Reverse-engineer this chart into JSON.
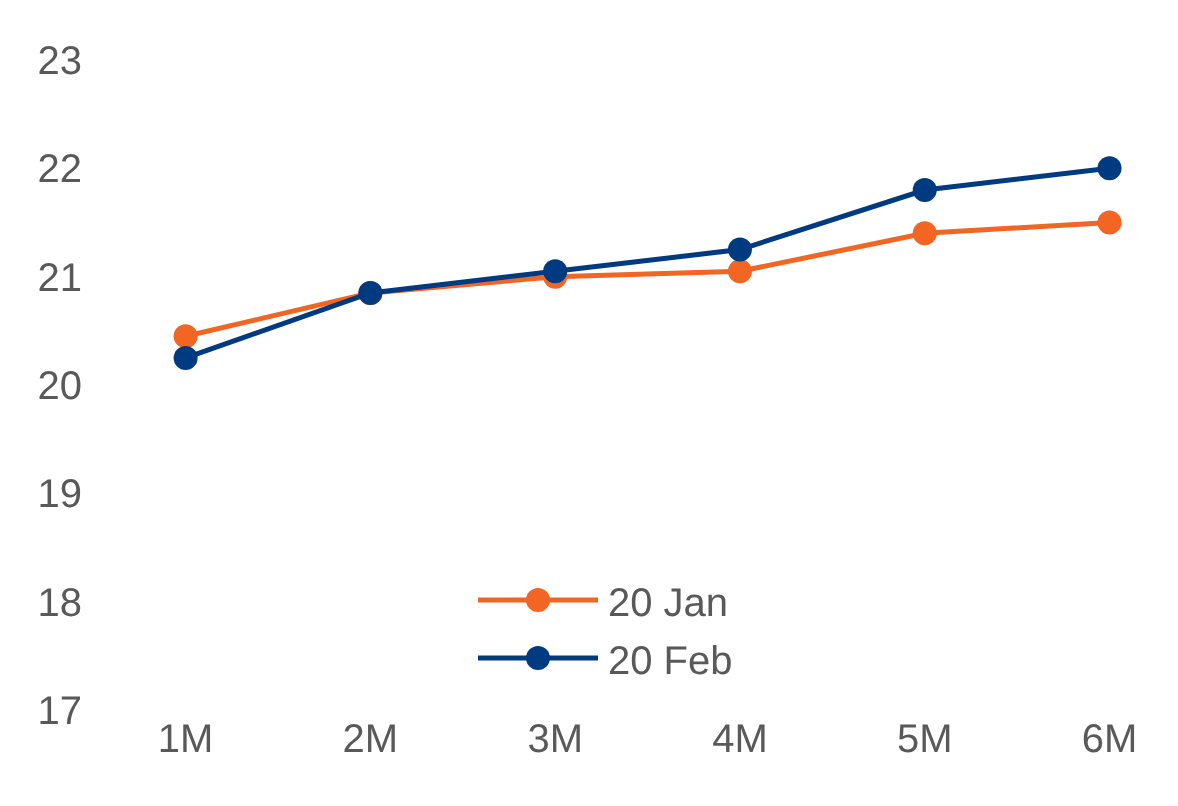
{
  "chart_data": {
    "type": "line",
    "categories": [
      "1M",
      "2M",
      "3M",
      "4M",
      "5M",
      "6M"
    ],
    "series": [
      {
        "name": "20 Jan",
        "color": "#f26522",
        "values": [
          20.45,
          20.85,
          21.0,
          21.05,
          21.4,
          21.5
        ]
      },
      {
        "name": "20 Feb",
        "color": "#003a80",
        "values": [
          20.25,
          20.85,
          21.05,
          21.25,
          21.8,
          22.0
        ]
      }
    ],
    "ylim": [
      17,
      23
    ],
    "yticks": [
      17,
      18,
      19,
      20,
      21,
      22,
      23
    ],
    "legend": "bottom",
    "marker": "circle",
    "line_style": "solid"
  }
}
